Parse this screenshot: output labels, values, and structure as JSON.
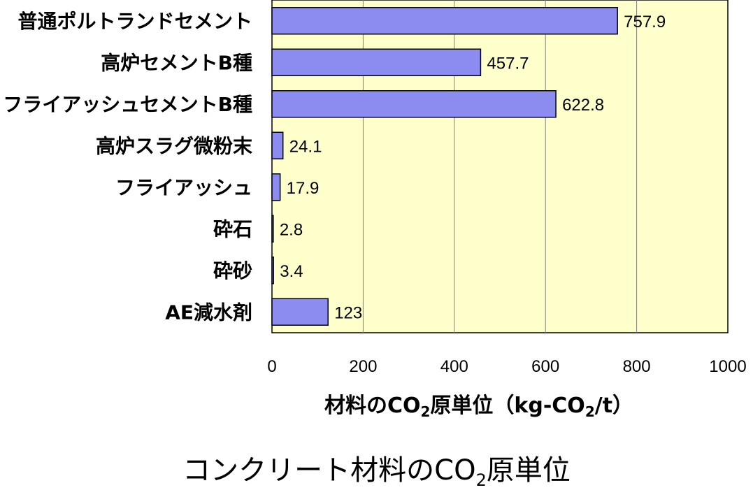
{
  "chart_data": {
    "type": "bar",
    "orientation": "horizontal",
    "categories": [
      "普通ポルトランドセメント",
      "高炉セメントB種",
      "フライアッシュセメントB種",
      "高炉スラグ微粉末",
      "フライアッシュ",
      "砕石",
      "砕砂",
      "AE減水剤"
    ],
    "values": [
      757.9,
      457.7,
      622.8,
      24.1,
      17.9,
      2.8,
      3.4,
      123
    ],
    "value_labels": [
      "757.9",
      "457.7",
      "622.8",
      "24.1",
      "17.9",
      "2.8",
      "3.4",
      "123"
    ],
    "xlim": [
      0,
      1000
    ],
    "xticks": [
      0,
      200,
      400,
      600,
      800,
      1000
    ],
    "xtick_labels": [
      "0",
      "200",
      "400",
      "600",
      "800",
      "1000"
    ],
    "xlabel": {
      "part1": "材料のCO",
      "sub1": "2",
      "part2": "原単位（kg-CO",
      "sub2": "2",
      "part3": "/t）"
    },
    "grid": "vertical",
    "colors": {
      "plot_bg": "#ffffcc",
      "bar_fill": "#8c8cf0",
      "bar_stroke": "#000000",
      "grid": "#808080"
    }
  },
  "caption": {
    "part1": "コンクリート材料のCO",
    "sub": "2",
    "part2": "原単位"
  }
}
